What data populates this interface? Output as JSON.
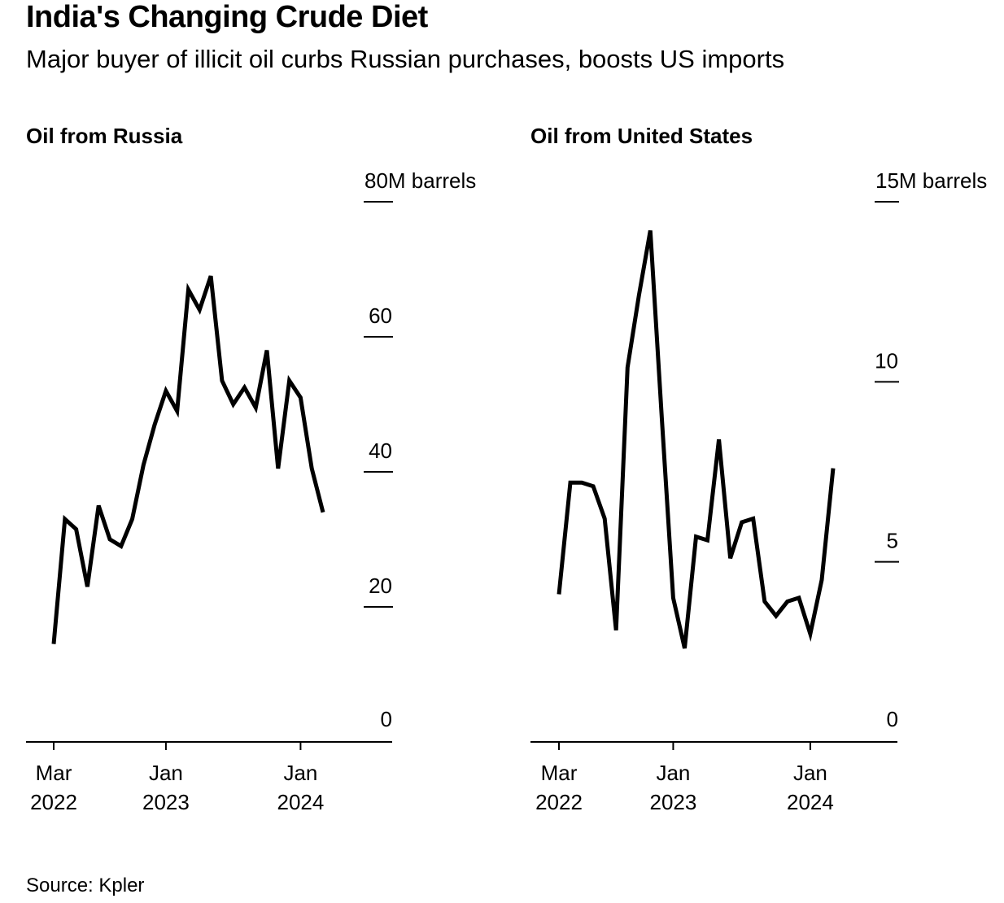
{
  "header": {
    "title": "India's Changing Crude Diet",
    "subtitle": "Major buyer of illicit oil curbs Russian purchases, boosts US imports"
  },
  "footer": {
    "source": "Source: Kpler"
  },
  "colors": {
    "line": "#000000",
    "axis": "#000000",
    "background": "#ffffff"
  },
  "chart_data": [
    {
      "type": "line",
      "title": "Oil from Russia",
      "ylabel": "",
      "y_unit_label": "M barrels",
      "ylim": [
        0,
        80
      ],
      "yticks": [
        0,
        20,
        40,
        60,
        80
      ],
      "ytick_labels": [
        "0",
        "20",
        "40",
        "60",
        "80"
      ],
      "xlim": [
        "2022-02",
        "2024-06"
      ],
      "xticks": [
        {
          "date": "2022-03",
          "label": [
            "Mar",
            "2022"
          ]
        },
        {
          "date": "2023-01",
          "label": [
            "Jan",
            "2023"
          ]
        },
        {
          "date": "2024-01",
          "label": [
            "Jan",
            "2024"
          ]
        }
      ],
      "x": [
        "2022-03",
        "2022-04",
        "2022-05",
        "2022-06",
        "2022-07",
        "2022-08",
        "2022-09",
        "2022-10",
        "2022-11",
        "2022-12",
        "2023-01",
        "2023-02",
        "2023-03",
        "2023-04",
        "2023-05",
        "2023-06",
        "2023-07",
        "2023-08",
        "2023-09",
        "2023-10",
        "2023-11",
        "2023-12",
        "2024-01",
        "2024-02",
        "2024-03"
      ],
      "series": [
        {
          "values": [
            14.5,
            33,
            31.5,
            23,
            35,
            30,
            29,
            33,
            41,
            47,
            52,
            49,
            67,
            64,
            69,
            53.5,
            50,
            52.5,
            49.5,
            58,
            40.5,
            53.5,
            51,
            40.5,
            34
          ]
        }
      ]
    },
    {
      "type": "line",
      "title": "Oil from United States",
      "ylabel": "",
      "y_unit_label": "M barrels",
      "ylim": [
        0,
        15
      ],
      "yticks": [
        0,
        5,
        10,
        15
      ],
      "ytick_labels": [
        "0",
        "5",
        "10",
        "15"
      ],
      "xlim": [
        "2022-02",
        "2024-06"
      ],
      "xticks": [
        {
          "date": "2022-03",
          "label": [
            "Mar",
            "2022"
          ]
        },
        {
          "date": "2023-01",
          "label": [
            "Jan",
            "2023"
          ]
        },
        {
          "date": "2024-01",
          "label": [
            "Jan",
            "2024"
          ]
        }
      ],
      "x": [
        "2022-03",
        "2022-04",
        "2022-05",
        "2022-06",
        "2022-07",
        "2022-08",
        "2022-09",
        "2022-10",
        "2022-11",
        "2022-12",
        "2023-01",
        "2023-02",
        "2023-03",
        "2023-04",
        "2023-05",
        "2023-06",
        "2023-07",
        "2023-08",
        "2023-09",
        "2023-10",
        "2023-11",
        "2023-12",
        "2024-01",
        "2024-02",
        "2024-03"
      ],
      "series": [
        {
          "values": [
            4.1,
            7.2,
            7.2,
            7.1,
            6.2,
            3.1,
            10.4,
            12.4,
            14.2,
            9.0,
            4.0,
            2.6,
            5.7,
            5.6,
            8.4,
            5.1,
            6.1,
            6.2,
            3.9,
            3.5,
            3.9,
            4.0,
            3.0,
            4.5,
            7.6
          ]
        }
      ]
    }
  ]
}
